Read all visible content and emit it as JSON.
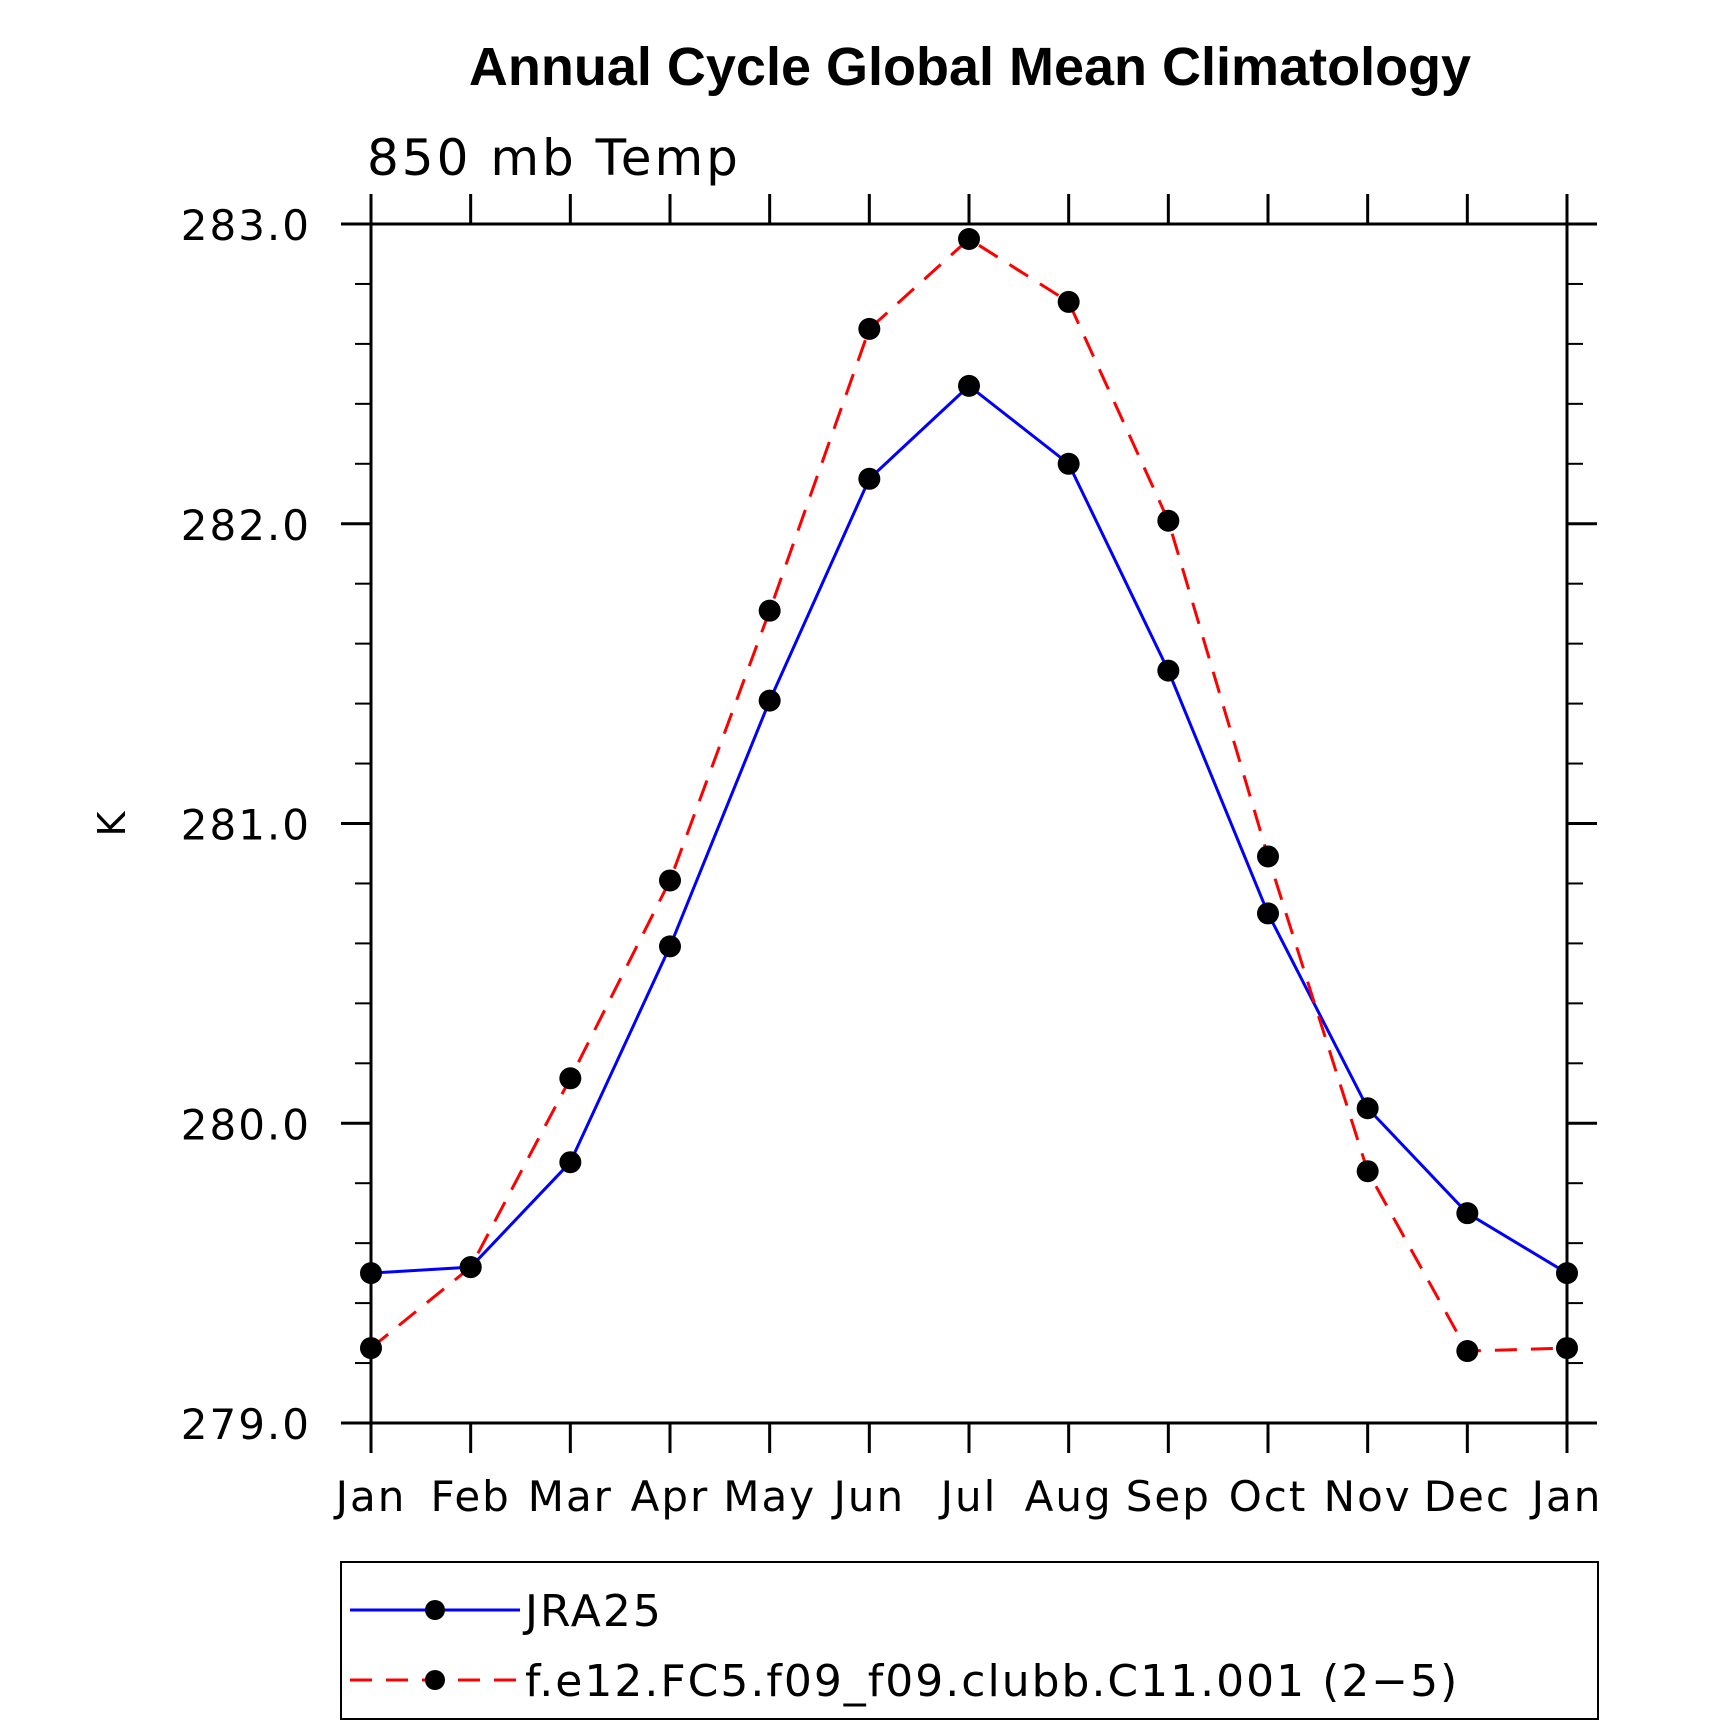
{
  "chart_data": {
    "type": "line",
    "title": "Annual Cycle Global Mean Climatology",
    "subtitle": "850 mb Temp",
    "xlabel": "",
    "ylabel": "K",
    "categories": [
      "Jan",
      "Feb",
      "Mar",
      "Apr",
      "May",
      "Jun",
      "Jul",
      "Aug",
      "Sep",
      "Oct",
      "Nov",
      "Dec",
      "Jan"
    ],
    "ylim": [
      279.0,
      283.0
    ],
    "y_ticks": [
      "279.0",
      "280.0",
      "281.0",
      "282.0",
      "283.0"
    ],
    "y_minor_step": 0.2,
    "grid": false,
    "legend_position": "bottom",
    "series": [
      {
        "name": "JRA25",
        "color": "#0000ff",
        "dash": "solid",
        "marker": "filled-circle",
        "values": [
          279.5,
          279.52,
          279.87,
          280.59,
          281.41,
          282.15,
          282.46,
          282.2,
          281.51,
          280.7,
          280.05,
          279.7,
          279.5
        ]
      },
      {
        "name": "f.e12.FC5.f09_f09.clubb.C11.001 (2−5)",
        "color": "#ff0000",
        "dash": "dashed",
        "marker": "filled-circle",
        "values": [
          279.25,
          279.52,
          280.15,
          280.81,
          281.71,
          282.65,
          282.95,
          282.74,
          282.01,
          280.89,
          279.84,
          279.24,
          279.25
        ]
      }
    ]
  }
}
